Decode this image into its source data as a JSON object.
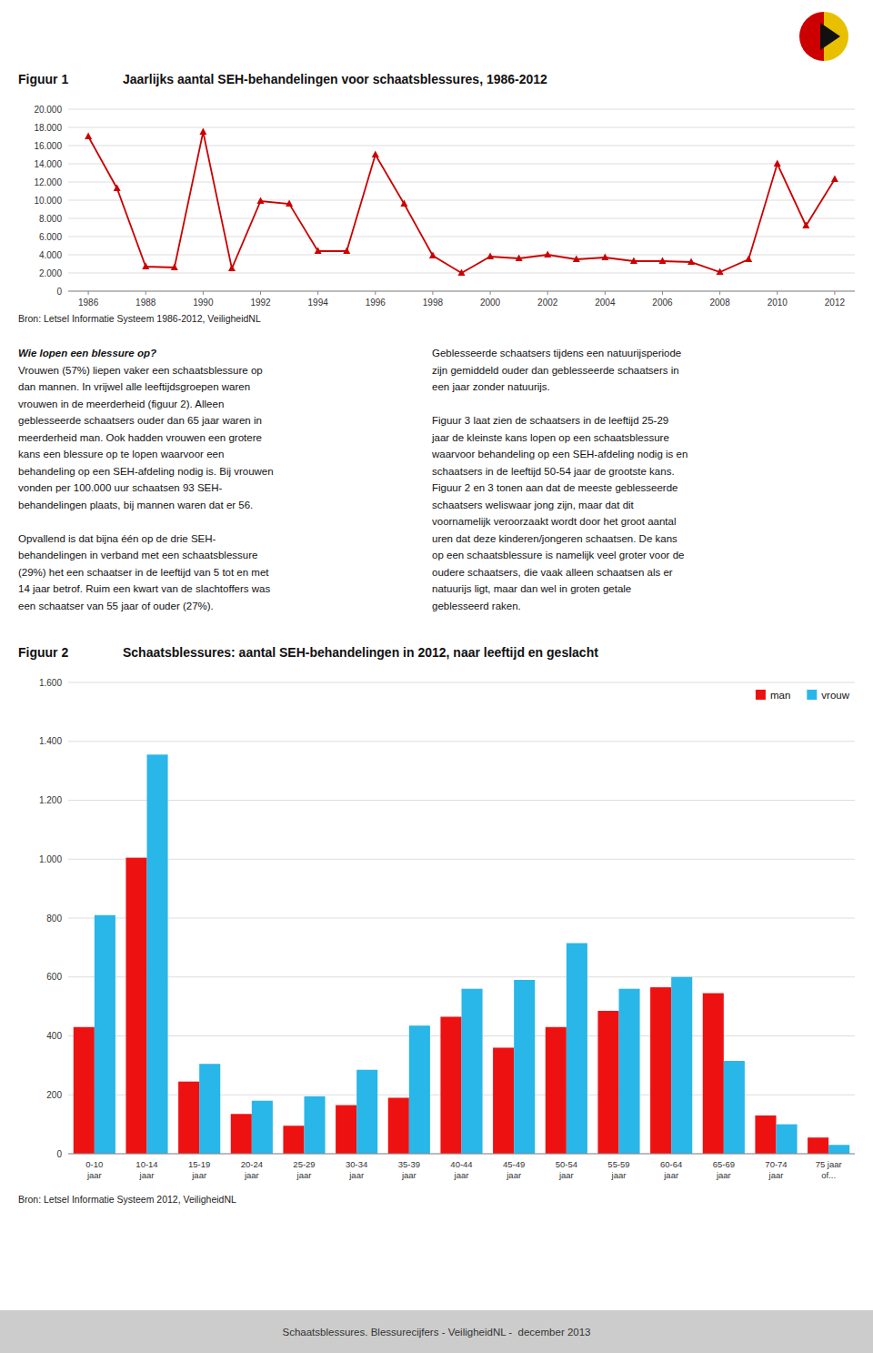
{
  "chart_data": [
    {
      "type": "line",
      "figure_label": "Figuur 1",
      "title": "Jaarlijks aantal SEH-behandelingen voor schaatsblessures, 1986-2012",
      "x": [
        1986,
        1987,
        1988,
        1989,
        1990,
        1991,
        1992,
        1993,
        1994,
        1995,
        1996,
        1997,
        1998,
        1999,
        2000,
        2001,
        2002,
        2003,
        2004,
        2005,
        2006,
        2007,
        2008,
        2009,
        2010,
        2011,
        2012
      ],
      "values": [
        17000,
        11300,
        2700,
        2600,
        17500,
        2500,
        9900,
        9600,
        4400,
        4400,
        15000,
        9600,
        3900,
        2000,
        3800,
        3600,
        4000,
        3500,
        3700,
        3300,
        3300,
        3200,
        2100,
        3500,
        14000,
        7200,
        12300
      ],
      "color": "#cc0000",
      "marker": "triangle",
      "xlim": [
        1985.3,
        2012.7
      ],
      "xticks": [
        1986,
        1988,
        1990,
        1992,
        1994,
        1996,
        1998,
        2000,
        2002,
        2004,
        2006,
        2008,
        2010,
        2012
      ],
      "ylim": [
        0,
        20000
      ],
      "yticks": [
        0,
        {
          "value": 2000,
          "label": "2.000"
        },
        {
          "value": 4000,
          "label": "4.000"
        },
        {
          "value": 6000,
          "label": "6.000"
        },
        {
          "value": 8000,
          "label": "8.000"
        },
        {
          "value": 10000,
          "label": "10.000"
        },
        {
          "value": 12000,
          "label": "12.000"
        },
        {
          "value": 14000,
          "label": "14.000"
        },
        {
          "value": 16000,
          "label": "16.000"
        },
        {
          "value": 18000,
          "label": "18.000"
        },
        {
          "value": 20000,
          "label": "20.000"
        }
      ],
      "grid": true,
      "source": "Bron: Letsel Informatie Systeem 1986-2012, VeiligheidNL"
    },
    {
      "type": "bar",
      "figure_label": "Figuur 2",
      "title": "Schaatsblessures: aantal SEH-behandelingen in 2012, naar leeftijd en geslacht",
      "categories": [
        "0-10\njaar",
        "10-14\njaar",
        "15-19\njaar",
        "20-24\njaar",
        "25-29\njaar",
        "30-34\njaar",
        "35-39\njaar",
        "40-44\njaar",
        "45-49\njaar",
        "50-54\njaar",
        "55-59\njaar",
        "60-64\njaar",
        "65-69\njaar",
        "70-74\njaar",
        "75 jaar\nof..."
      ],
      "series": [
        {
          "name": "man",
          "color": "#ee1111",
          "values": [
            430,
            1005,
            245,
            135,
            95,
            165,
            190,
            465,
            360,
            430,
            485,
            565,
            545,
            130,
            55
          ]
        },
        {
          "name": "vrouw",
          "color": "#29b6e8",
          "values": [
            810,
            1355,
            305,
            180,
            195,
            285,
            435,
            560,
            590,
            715,
            560,
            600,
            315,
            100,
            30
          ]
        }
      ],
      "ylim": [
        0,
        1600
      ],
      "yticks": [
        0,
        200,
        400,
        600,
        800,
        {
          "value": 1000,
          "label": "1.000"
        },
        {
          "value": 1200,
          "label": "1.200"
        },
        {
          "value": 1400,
          "label": "1.400"
        },
        {
          "value": 1600,
          "label": "1.600"
        }
      ],
      "grid": true,
      "legend": "top-right",
      "source": "Bron: Letsel Informatie Systeem 2012, VeiligheidNL"
    }
  ],
  "text": {
    "body_left_title": "Wie lopen een blessure op?",
    "body_left_paragraphs": [
      [
        "Vrouwen (57%) liepen vaker een schaatsblessure op",
        "dan mannen. In vrijwel alle leeftijdsgroepen waren",
        "vrouwen in de meerderheid (figuur 2). Alleen",
        "geblesseerde schaatsers ouder dan 65 jaar waren in",
        "meerderheid man. Ook hadden vrouwen een grotere",
        "kans een blessure op te lopen waarvoor een",
        "behandeling op een SEH-afdeling nodig is. Bij vrouwen",
        "vonden per 100.000 uur schaatsen 93 SEH-",
        "behandelingen plaats, bij mannen waren dat er 56."
      ],
      [
        "Opvallend is dat bijna één op de drie SEH-",
        "behandelingen in verband met een schaatsblessure",
        "(29%) het een schaatser in de leeftijd van 5 tot en met",
        "14 jaar betrof. Ruim een kwart van de slachtoffers was",
        "een schaatser van 55 jaar of ouder (27%)."
      ]
    ],
    "body_right_paragraphs": [
      [
        "Geblesseerde schaatsers tijdens een natuurijsperiode",
        "zijn gemiddeld ouder dan geblesseerde schaatsers in",
        "een jaar zonder natuurijs."
      ],
      [
        "Figuur 3 laat zien de schaatsers in de leeftijd 25-29",
        "jaar de kleinste kans lopen op een schaatsblessure",
        "waarvoor behandeling op een SEH-afdeling nodig is en",
        "schaatsers in de leeftijd 50-54 jaar de grootste kans.",
        "Figuur 2 en 3 tonen aan dat de meeste geblesseerde",
        "schaatsers weliswaar jong zijn, maar dat dit",
        "voornamelijk veroorzaakt wordt door het groot aantal",
        "uren dat deze kinderen/jongeren schaatsen. De kans",
        "op een schaatsblessure is namelijk veel groter voor de",
        "oudere schaatsers, die vaak alleen schaatsen als er",
        "natuurijs ligt, maar dan wel in groten getale",
        "geblesseerd raken."
      ]
    ],
    "footer": "Schaatsblessures. Blessurecijfers - VeiligheidNL -  december 2013"
  }
}
